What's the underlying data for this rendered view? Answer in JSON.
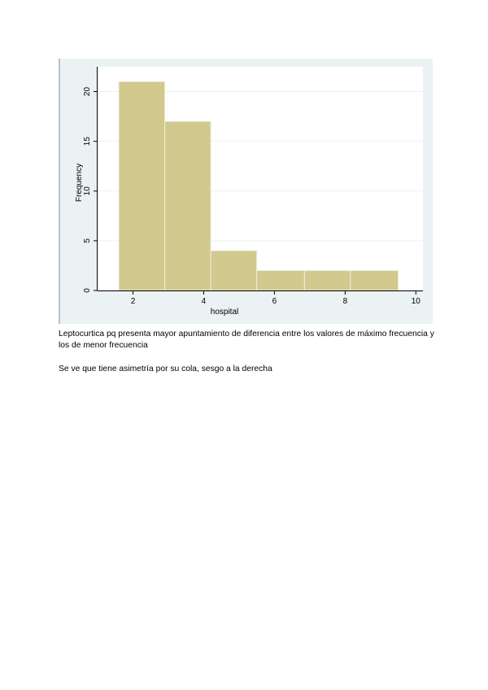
{
  "chart_data": {
    "type": "bar",
    "xlabel": "hospital",
    "ylabel": "Frequency",
    "xlim": [
      1,
      10.2
    ],
    "ylim": [
      0,
      22.5
    ],
    "xticks": [
      2,
      4,
      6,
      8,
      10
    ],
    "yticks": [
      0,
      5,
      10,
      15,
      20
    ],
    "grid": true,
    "bins": [
      {
        "start": 1.6,
        "end": 2.9,
        "count": 21
      },
      {
        "start": 2.9,
        "end": 4.2,
        "count": 17
      },
      {
        "start": 4.2,
        "end": 5.5,
        "count": 4
      },
      {
        "start": 5.5,
        "end": 6.85,
        "count": 2
      },
      {
        "start": 6.85,
        "end": 8.15,
        "count": 2
      },
      {
        "start": 8.15,
        "end": 9.5,
        "count": 2
      }
    ],
    "colors": {
      "bar_fill": "#d1c98d",
      "bar_edge": "#eeeedd",
      "plot_background": "#ffffff",
      "figure_background": "#eaf2f3",
      "grid": "#eaf2f3"
    }
  },
  "text": {
    "paragraph1": "Leptocurtica pq presenta mayor apuntamiento de diferencia entre los valores de máximo frecuencia y los de menor frecuencia",
    "paragraph2": "Se ve que tiene asimetría por su cola, sesgo a la derecha"
  }
}
